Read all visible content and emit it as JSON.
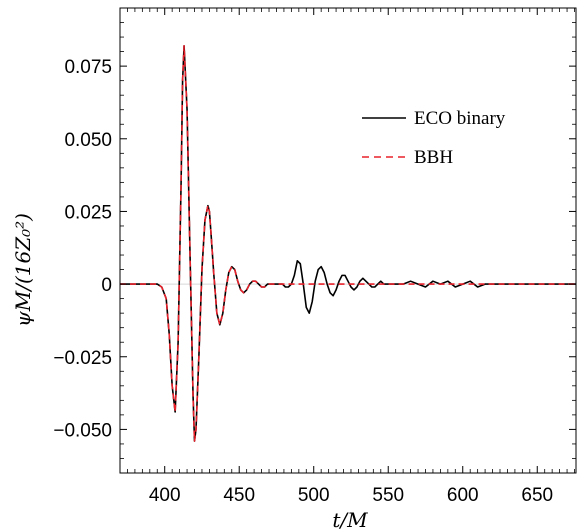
{
  "chart_data": {
    "type": "line",
    "title": "",
    "xlabel": "t/M",
    "ylabel": "ψM/(16Z₀²)",
    "xlim": [
      370,
      676
    ],
    "ylim": [
      -0.065,
      0.095
    ],
    "xticks": [
      400,
      450,
      500,
      550,
      600,
      650
    ],
    "yticks": [
      0.075,
      0.05,
      0.025,
      0,
      -0.025,
      -0.05
    ],
    "ytick_labels": [
      "0.075",
      "0.050",
      "0.025",
      "0",
      "−0.025",
      "−0.050"
    ],
    "grid": false,
    "zero_line": true,
    "legend_position": "top-right",
    "series": [
      {
        "name": "ECO binary",
        "color": "#000000",
        "style": "solid",
        "x": [
          370,
          395,
          398,
          401,
          403,
          405,
          407,
          409,
          411,
          412,
          413,
          415,
          417,
          419,
          420,
          421,
          423,
          425,
          427,
          429,
          430,
          431,
          433,
          435,
          437,
          439,
          441,
          443,
          445,
          447,
          449,
          451,
          453,
          455,
          457,
          459,
          461,
          463,
          465,
          467,
          469,
          471,
          473,
          475,
          477,
          479,
          481,
          483,
          485,
          487,
          489,
          491,
          493,
          495,
          497,
          499,
          501,
          503,
          505,
          507,
          509,
          511,
          513,
          515,
          517,
          519,
          521,
          523,
          525,
          527,
          529,
          531,
          533,
          535,
          537,
          539,
          541,
          543,
          545,
          547,
          549,
          551,
          553,
          555,
          557,
          560,
          565,
          570,
          575,
          580,
          585,
          590,
          595,
          600,
          605,
          610,
          615,
          620,
          630,
          640,
          650,
          660,
          676
        ],
        "y": [
          0,
          0,
          -0.001,
          -0.005,
          -0.017,
          -0.035,
          -0.044,
          -0.02,
          0.035,
          0.07,
          0.082,
          0.06,
          0.01,
          -0.038,
          -0.054,
          -0.05,
          -0.024,
          0.005,
          0.022,
          0.027,
          0.025,
          0.018,
          0.003,
          -0.01,
          -0.014,
          -0.01,
          -0.002,
          0.004,
          0.006,
          0.005,
          0.001,
          -0.002,
          -0.003,
          -0.002,
          0,
          0.001,
          0.001,
          0,
          -0.001,
          -0.001,
          0,
          0,
          0,
          0,
          0,
          0,
          -0.001,
          -0.001,
          0,
          0.003,
          0.008,
          0.007,
          0,
          -0.008,
          -0.01,
          -0.006,
          0.001,
          0.005,
          0.006,
          0.004,
          0,
          -0.003,
          -0.004,
          -0.002,
          0.001,
          0.003,
          0.003,
          0.001,
          -0.001,
          -0.002,
          -0.001,
          0.001,
          0.002,
          0.001,
          0,
          -0.001,
          -0.001,
          0,
          0.001,
          0,
          0,
          0,
          0,
          0,
          0,
          0,
          0.001,
          0,
          -0.001,
          0.001,
          0,
          0.001,
          -0.001,
          0,
          0.001,
          -0.001,
          0,
          0,
          0,
          0,
          0,
          0,
          0
        ]
      },
      {
        "name": "BBH",
        "color": "#e8202a",
        "style": "dashed",
        "x": [
          370,
          395,
          398,
          401,
          403,
          405,
          407,
          409,
          411,
          412,
          413,
          415,
          417,
          419,
          420,
          421,
          423,
          425,
          427,
          429,
          430,
          431,
          433,
          435,
          437,
          439,
          441,
          443,
          445,
          447,
          449,
          451,
          453,
          455,
          457,
          459,
          461,
          463,
          465,
          467,
          469,
          471,
          476,
          480,
          490,
          500,
          510,
          520,
          540,
          560,
          580,
          600,
          630,
          660,
          676
        ],
        "y": [
          0,
          0,
          -0.001,
          -0.005,
          -0.017,
          -0.035,
          -0.044,
          -0.02,
          0.035,
          0.07,
          0.082,
          0.06,
          0.01,
          -0.038,
          -0.054,
          -0.05,
          -0.024,
          0.005,
          0.022,
          0.027,
          0.025,
          0.018,
          0.003,
          -0.01,
          -0.014,
          -0.01,
          -0.002,
          0.004,
          0.006,
          0.005,
          0.001,
          -0.002,
          -0.003,
          -0.002,
          0,
          0.001,
          0.001,
          0,
          -0.001,
          -0.001,
          0,
          0,
          0,
          0,
          0,
          0,
          0,
          0,
          0,
          0,
          0,
          0,
          0,
          0,
          0
        ]
      }
    ]
  }
}
